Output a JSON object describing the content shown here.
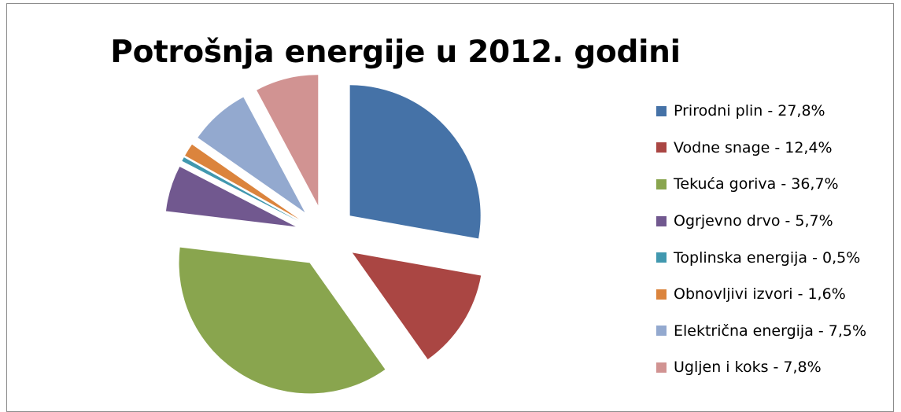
{
  "chart_data": {
    "type": "pie",
    "title": "Potrošnja energije u 2012. godini",
    "exploded": true,
    "legend_position": "right",
    "slices": [
      {
        "label": "Prirodni plin - 27,8%",
        "name": "Prirodni plin",
        "value": 27.8,
        "color": "#4572A7"
      },
      {
        "label": "Vodne snage - 12,4%",
        "name": "Vodne snage",
        "value": 12.4,
        "color": "#AA4643"
      },
      {
        "label": "Tekuća goriva - 36,7%",
        "name": "Tekuća goriva",
        "value": 36.7,
        "color": "#89A54E"
      },
      {
        "label": "Ogrjevno drvo - 5,7%",
        "name": "Ogrjevno drvo",
        "value": 5.7,
        "color": "#71588F"
      },
      {
        "label": "Toplinska energija - 0,5%",
        "name": "Toplinska energija",
        "value": 0.5,
        "color": "#4198AF"
      },
      {
        "label": "Obnovljivi izvori - 1,6%",
        "name": "Obnovljivi izvori",
        "value": 1.6,
        "color": "#DB843D"
      },
      {
        "label": "Električna energija - 7,5%",
        "name": "Električna energija",
        "value": 7.5,
        "color": "#93A9CF"
      },
      {
        "label": "Ugljen i koks - 7,8%",
        "name": "Ugljen i koks",
        "value": 7.8,
        "color": "#D19392"
      }
    ]
  }
}
